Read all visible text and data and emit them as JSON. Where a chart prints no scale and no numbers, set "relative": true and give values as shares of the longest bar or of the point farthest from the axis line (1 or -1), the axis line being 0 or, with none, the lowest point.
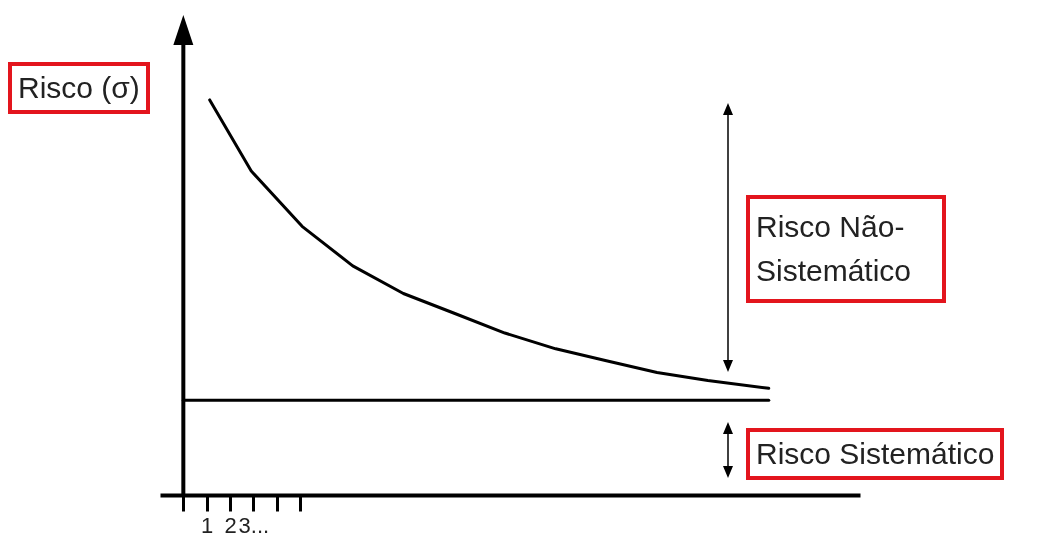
{
  "chart_data": {
    "type": "line",
    "relative": true,
    "ylabel": "Risco (σ)",
    "annotations": [
      "Risco Não-Sistemático",
      "Risco Sistemático"
    ],
    "xlim": [
      -1,
      29
    ],
    "xticks": [
      {
        "value": 0,
        "label": null
      },
      {
        "value": 1,
        "label": "1"
      },
      {
        "value": 2,
        "label": "2"
      },
      {
        "value": 3,
        "label": "3..."
      },
      {
        "value": 4,
        "label": null
      },
      {
        "value": 5,
        "label": null
      }
    ],
    "series": [
      {
        "color": "#000000",
        "x": [
          1.13,
          2.91,
          5.09,
          7.26,
          9.43,
          11.61,
          13.78,
          15.96,
          18.13,
          20.3,
          22.48,
          25.09
        ],
        "values": [
          1.0,
          0.82,
          0.68,
          0.58,
          0.51,
          0.46,
          0.41,
          0.37,
          0.34,
          0.31,
          0.29,
          0.27
        ]
      },
      {
        "color": "#000000",
        "x": [
          0,
          25.09
        ],
        "values": [
          0.24,
          0.24
        ]
      }
    ],
    "marker": "none",
    "line_style": "solid"
  }
}
